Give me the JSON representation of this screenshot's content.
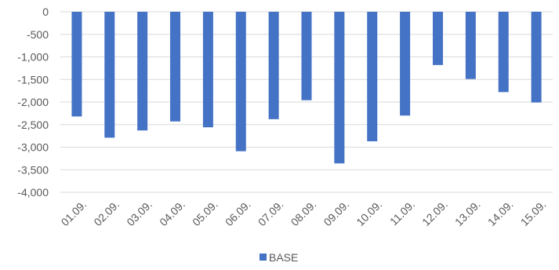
{
  "chart_data": {
    "type": "bar",
    "categories": [
      "01.09.",
      "02.09.",
      "03.09.",
      "04.09.",
      "05.09.",
      "06.09.",
      "07.09.",
      "08.09.",
      "09.09.",
      "10.09.",
      "11.09.",
      "12.09.",
      "13.09.",
      "14.09.",
      "15.09."
    ],
    "series": [
      {
        "name": "BASE",
        "color": "#4472C4",
        "values": [
          -2320,
          -2790,
          -2630,
          -2430,
          -2560,
          -3090,
          -2380,
          -1960,
          -3360,
          -2870,
          -2300,
          -1180,
          -1490,
          -1780,
          -2010
        ]
      }
    ],
    "ylim": [
      -4000,
      0
    ],
    "y_tick_step": 500,
    "y_tick_labels": [
      "0",
      "-500",
      "-1,000",
      "-1,500",
      "-2,000",
      "-2,500",
      "-3,000",
      "-3,500",
      "-4,000"
    ],
    "grid": true,
    "gridline_color": "#d9d9d9",
    "legend_position": "bottom",
    "title": "",
    "xlabel": "",
    "ylabel": ""
  }
}
